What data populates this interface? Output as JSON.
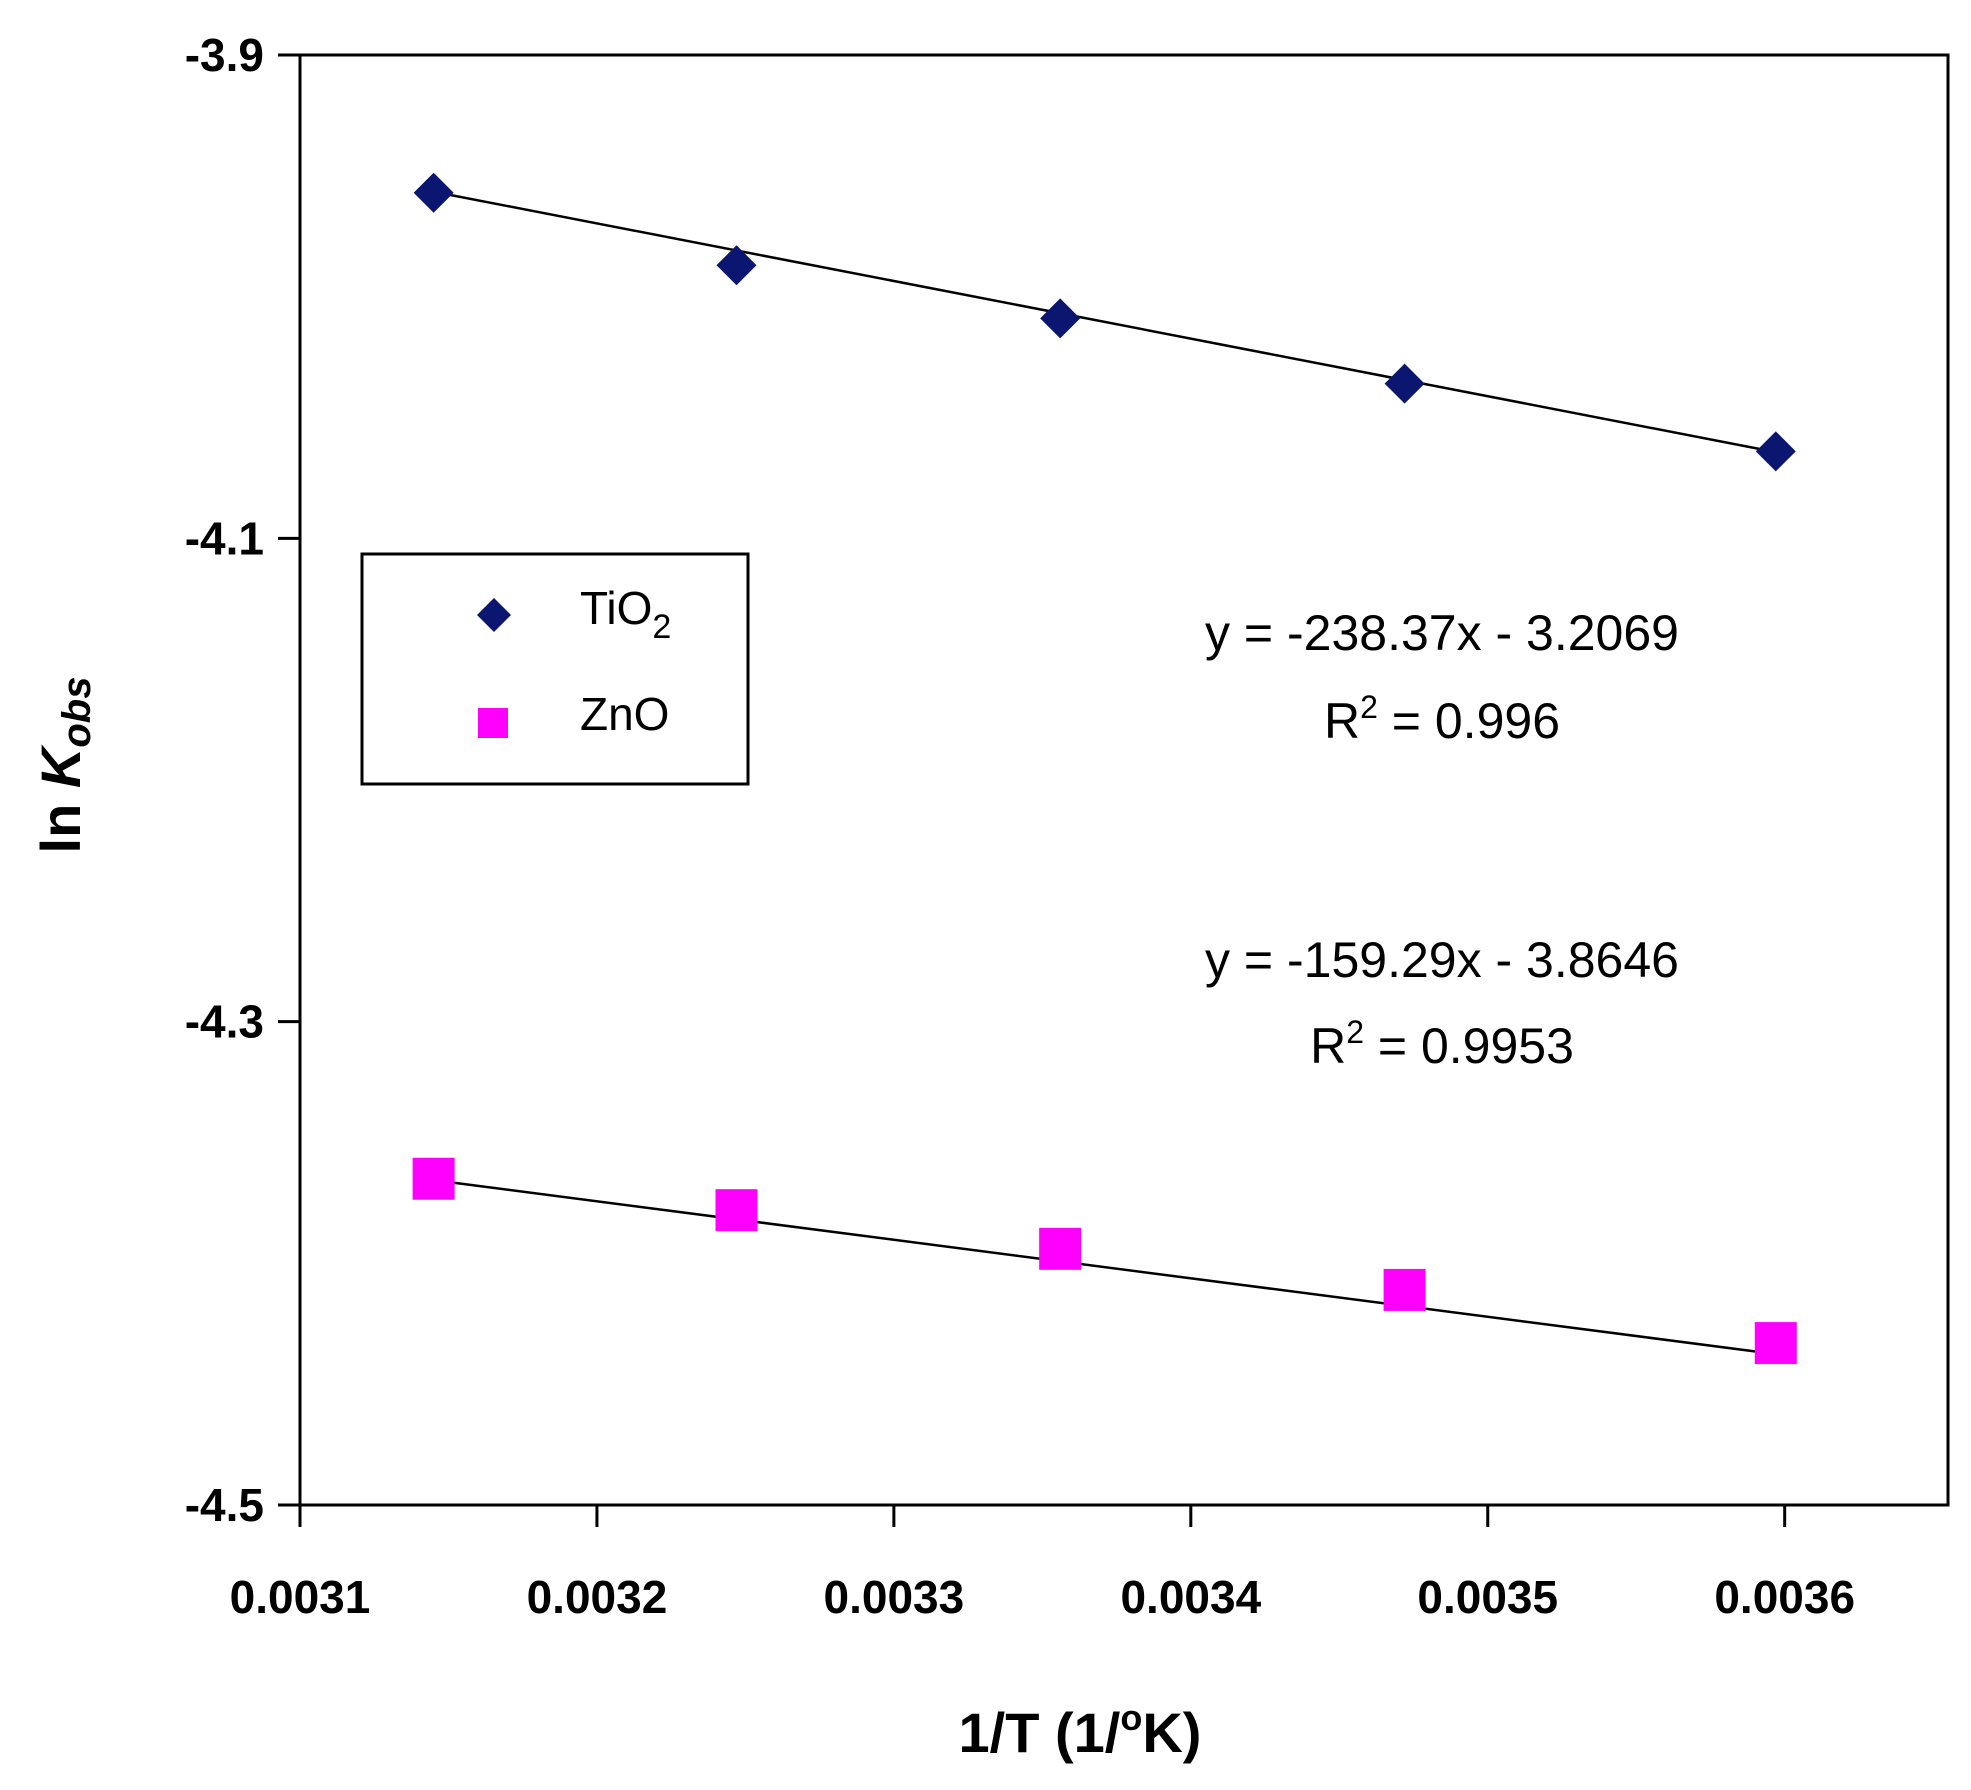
{
  "chart_data": {
    "type": "scatter",
    "title": "",
    "xlabel": "1/T (1/",
    "xlabel_sup": "o",
    "xlabel_end": "K)",
    "ylabel_prefix": "ln ",
    "ylabel_main": "K",
    "ylabel_sub": "obs",
    "xlim": [
      0.0031,
      0.003655
    ],
    "ylim": [
      -4.5,
      -3.9
    ],
    "xticks": [
      0.0031,
      0.0032,
      0.0033,
      0.0034,
      0.0035,
      0.0036
    ],
    "xtick_labels": [
      "0.0031",
      "0.0032",
      "0.0033",
      "0.0034",
      "0.0035",
      "0.0036"
    ],
    "yticks": [
      -3.9,
      -4.1,
      -4.3,
      -4.5
    ],
    "ytick_labels": [
      "-3.9",
      "-4.1",
      "-4.3",
      "-4.5"
    ],
    "grid": false,
    "legend_position": "left",
    "series": [
      {
        "name": "TiO",
        "name_sub": "2",
        "marker": "diamond",
        "color": "#0a1670",
        "x": [
          0.003145,
          0.003247,
          0.003356,
          0.003472,
          0.003597
        ],
        "y": [
          -3.957,
          -3.987,
          -4.009,
          -4.036,
          -4.064
        ],
        "trendline": {
          "slope": -238.37,
          "intercept": -3.2069
        },
        "equation": "y = -238.37x - 3.2069",
        "r2_label": "R",
        "r2_sup": "2",
        "r2_value": " = 0.996"
      },
      {
        "name": "ZnO",
        "marker": "square",
        "color": "#ff00ff",
        "x": [
          0.003145,
          0.003247,
          0.003356,
          0.003472,
          0.003597
        ],
        "y": [
          -4.365,
          -4.378,
          -4.394,
          -4.411,
          -4.433
        ],
        "trendline": {
          "slope": -159.29,
          "intercept": -3.8646
        },
        "equation": "y = -159.29x - 3.8646",
        "r2_label": "R",
        "r2_sup": "2",
        "r2_value": " = 0.9953"
      }
    ]
  }
}
